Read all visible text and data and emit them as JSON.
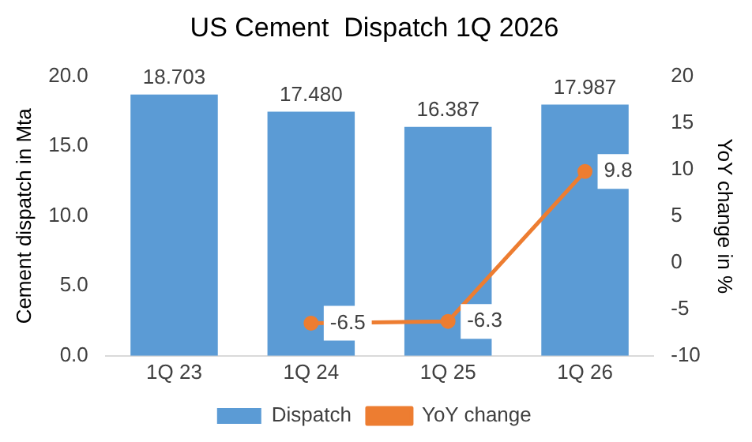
{
  "chart_data": {
    "type": "bar",
    "title": "US Cement  Dispatch 1Q 2026",
    "ylabel": "Cement dispatch in Mta",
    "y2label": "YoY change in %",
    "categories": [
      "1Q 23",
      "1Q 24",
      "1Q 25",
      "1Q 26"
    ],
    "series": [
      {
        "name": "Dispatch",
        "color": "#5b9bd5",
        "values": [
          18.703,
          17.48,
          16.387,
          17.987
        ],
        "value_labels": [
          "18.703",
          "17.480",
          "16.387",
          "17.987"
        ]
      },
      {
        "name": "YoY change",
        "type": "line",
        "axis": "y2",
        "color": "#ed7d31",
        "marker": "circle",
        "values": [
          null,
          -6.5,
          -6.3,
          9.8
        ],
        "value_labels": [
          null,
          "-6.5",
          "-6.3",
          "9.8"
        ]
      }
    ],
    "ylim": [
      0,
      20
    ],
    "yticks": [
      {
        "value": 0,
        "label": "0.0"
      },
      {
        "value": 5,
        "label": "5.0"
      },
      {
        "value": 10,
        "label": "10.0"
      },
      {
        "value": 15,
        "label": "15.0"
      },
      {
        "value": 20,
        "label": "20.0"
      }
    ],
    "y2lim": [
      -10,
      20
    ],
    "y2ticks": [
      -10,
      -5,
      0,
      5,
      10,
      15,
      20
    ],
    "grid": false,
    "legend": "bottom"
  }
}
